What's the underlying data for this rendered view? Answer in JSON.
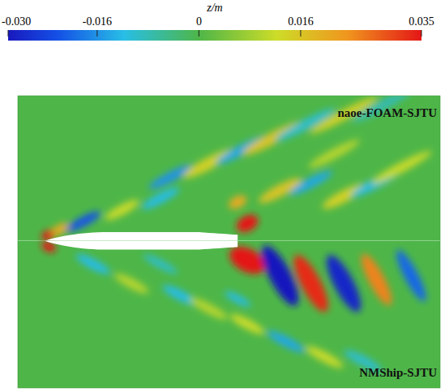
{
  "chart_data": {
    "type": "contour",
    "title": "z/m",
    "xlim": [
      -0.14,
      2.05
    ],
    "tick_labels": false,
    "colorbar": {
      "range": [
        -0.03,
        0.035
      ],
      "ticks": [
        {
          "value": -0.03,
          "label": "-0.030"
        },
        -0.016,
        0,
        0.016,
        0.035
      ]
    },
    "hull": {
      "x": [
        0,
        1
      ],
      "half_beam": 0.045
    },
    "panels": [
      {
        "name": "naoe-FOAM-SJTU",
        "ylim": [
          0,
          0.75
        ],
        "blobs": [
          {
            "x": 0.02,
            "y": 0.03,
            "z": 0.035,
            "length": 0.08,
            "width": 0.05
          },
          {
            "x": 0.08,
            "y": 0.06,
            "z": 0.02,
            "length": 0.1,
            "width": 0.05
          },
          {
            "x": 0.2,
            "y": 0.1,
            "z": -0.022,
            "length": 0.2,
            "width": 0.05
          },
          {
            "x": 0.4,
            "y": 0.16,
            "z": 0.012,
            "length": 0.2,
            "width": 0.05
          },
          {
            "x": 0.6,
            "y": 0.22,
            "z": -0.012,
            "length": 0.22,
            "width": 0.05
          },
          {
            "x": 0.65,
            "y": 0.33,
            "z": -0.016,
            "length": 0.25,
            "width": 0.05
          },
          {
            "x": 0.85,
            "y": 0.4,
            "z": 0.014,
            "length": 0.3,
            "width": 0.06
          },
          {
            "x": 1.02,
            "y": 0.47,
            "z": -0.014,
            "length": 0.3,
            "width": 0.05
          },
          {
            "x": 1.18,
            "y": 0.53,
            "z": 0.016,
            "length": 0.35,
            "width": 0.06
          },
          {
            "x": 1.35,
            "y": 0.6,
            "z": -0.01,
            "length": 0.35,
            "width": 0.05
          },
          {
            "x": 1.55,
            "y": 0.65,
            "z": 0.014,
            "length": 0.4,
            "width": 0.05
          },
          {
            "x": 1.75,
            "y": 0.7,
            "z": -0.008,
            "length": 0.35,
            "width": 0.05
          },
          {
            "x": 1.05,
            "y": 0.09,
            "z": 0.035,
            "length": 0.12,
            "width": 0.08
          },
          {
            "x": 1.0,
            "y": 0.2,
            "z": 0.02,
            "length": 0.1,
            "width": 0.06
          },
          {
            "x": 1.22,
            "y": 0.26,
            "z": 0.016,
            "length": 0.25,
            "width": 0.06
          },
          {
            "x": 1.38,
            "y": 0.3,
            "z": -0.014,
            "length": 0.25,
            "width": 0.05
          },
          {
            "x": 1.55,
            "y": 0.23,
            "z": 0.014,
            "length": 0.25,
            "width": 0.06
          },
          {
            "x": 1.72,
            "y": 0.3,
            "z": -0.012,
            "length": 0.3,
            "width": 0.05
          },
          {
            "x": 1.85,
            "y": 0.38,
            "z": 0.012,
            "length": 0.35,
            "width": 0.05
          },
          {
            "x": 1.5,
            "y": 0.45,
            "z": 0.01,
            "length": 0.3,
            "width": 0.05
          }
        ]
      },
      {
        "name": "NMShip-SJTU",
        "ylim": [
          -0.76,
          0
        ],
        "blobs": [
          {
            "x": 0.02,
            "y": -0.03,
            "z": 0.035,
            "length": 0.08,
            "width": 0.05
          },
          {
            "x": 0.25,
            "y": -0.12,
            "z": -0.012,
            "length": 0.2,
            "width": 0.05
          },
          {
            "x": 0.45,
            "y": -0.22,
            "z": 0.01,
            "length": 0.2,
            "width": 0.05
          },
          {
            "x": 0.6,
            "y": -0.12,
            "z": -0.01,
            "length": 0.2,
            "width": 0.04
          },
          {
            "x": 0.7,
            "y": -0.28,
            "z": -0.012,
            "length": 0.2,
            "width": 0.05
          },
          {
            "x": 0.85,
            "y": -0.35,
            "z": 0.01,
            "length": 0.22,
            "width": 0.05
          },
          {
            "x": 1.05,
            "y": -0.1,
            "z": 0.035,
            "length": 0.2,
            "width": 0.12
          },
          {
            "x": 1.22,
            "y": -0.18,
            "z": -0.03,
            "length": 0.35,
            "width": 0.11
          },
          {
            "x": 1.38,
            "y": -0.22,
            "z": 0.033,
            "length": 0.33,
            "width": 0.1
          },
          {
            "x": 1.55,
            "y": -0.22,
            "z": -0.028,
            "length": 0.33,
            "width": 0.1
          },
          {
            "x": 1.72,
            "y": -0.2,
            "z": 0.025,
            "length": 0.3,
            "width": 0.08
          },
          {
            "x": 1.9,
            "y": -0.18,
            "z": -0.02,
            "length": 0.3,
            "width": 0.07
          },
          {
            "x": 1.05,
            "y": -0.43,
            "z": 0.012,
            "length": 0.2,
            "width": 0.05
          },
          {
            "x": 1.25,
            "y": -0.52,
            "z": -0.014,
            "length": 0.22,
            "width": 0.05
          },
          {
            "x": 1.45,
            "y": -0.6,
            "z": 0.012,
            "length": 0.22,
            "width": 0.05
          },
          {
            "x": 1.65,
            "y": -0.62,
            "z": -0.01,
            "length": 0.22,
            "width": 0.05
          },
          {
            "x": 1.0,
            "y": -0.3,
            "z": -0.012,
            "length": 0.15,
            "width": 0.04
          }
        ]
      }
    ]
  }
}
